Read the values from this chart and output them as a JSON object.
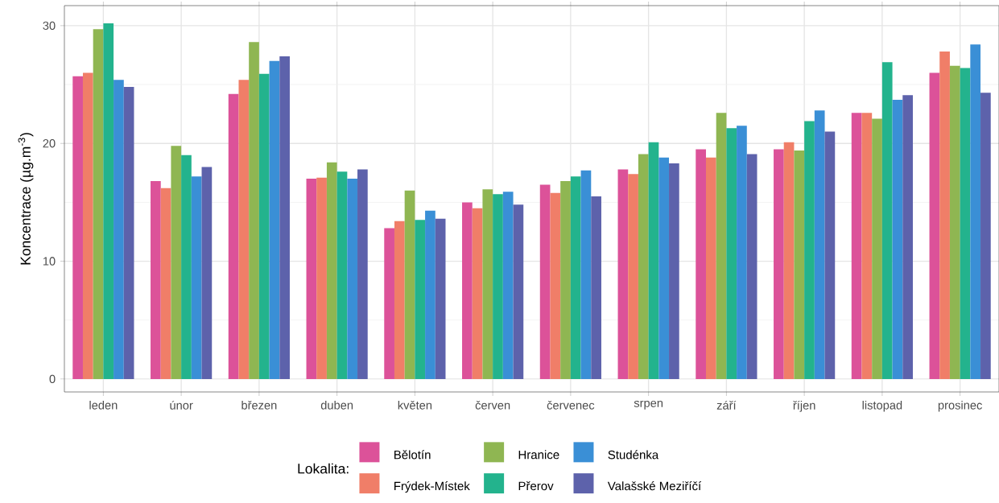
{
  "chart_data": {
    "type": "bar",
    "ylabel": "Koncentrace (µg.m$^{-3}$)",
    "legend_title": "Lokalita:",
    "legend": "bottom",
    "grid": true,
    "categories": [
      "leden",
      "únor",
      "březen",
      "duben",
      "květen",
      "červen",
      "červenec",
      "srpen",
      "září",
      "říjen",
      "listopad",
      "prosinec"
    ],
    "ylim": [
      -1.1,
      31.7
    ],
    "yticks": [
      0,
      10,
      20,
      30
    ],
    "series": [
      {
        "name": "Bělotín",
        "color": "#dc5299",
        "values": [
          25.7,
          16.8,
          24.2,
          17.0,
          12.8,
          15.0,
          16.5,
          17.8,
          19.5,
          19.5,
          22.6,
          26.0
        ]
      },
      {
        "name": "Frýdek-Místek",
        "color": "#f07e68",
        "values": [
          26.0,
          16.2,
          25.4,
          17.1,
          13.4,
          14.5,
          15.8,
          17.4,
          18.8,
          20.1,
          22.6,
          27.8
        ]
      },
      {
        "name": "Hranice",
        "color": "#8fb652",
        "values": [
          29.7,
          19.8,
          28.6,
          18.4,
          16.0,
          16.1,
          16.8,
          19.1,
          22.6,
          19.4,
          22.1,
          26.6
        ]
      },
      {
        "name": "Přerov",
        "color": "#23b38d",
        "values": [
          30.2,
          19.0,
          25.9,
          17.6,
          13.5,
          15.7,
          17.2,
          20.1,
          21.3,
          21.9,
          26.9,
          26.4
        ]
      },
      {
        "name": "Studénka",
        "color": "#3a8fd6",
        "values": [
          25.4,
          17.2,
          27.0,
          17.0,
          14.3,
          15.9,
          17.7,
          18.8,
          21.5,
          22.8,
          23.7,
          28.4
        ]
      },
      {
        "name": "Valašské Meziříčí",
        "color": "#5d62ab",
        "values": [
          24.8,
          18.0,
          27.4,
          17.8,
          13.6,
          14.8,
          15.5,
          18.3,
          19.1,
          21.0,
          24.1,
          24.3
        ]
      }
    ]
  }
}
